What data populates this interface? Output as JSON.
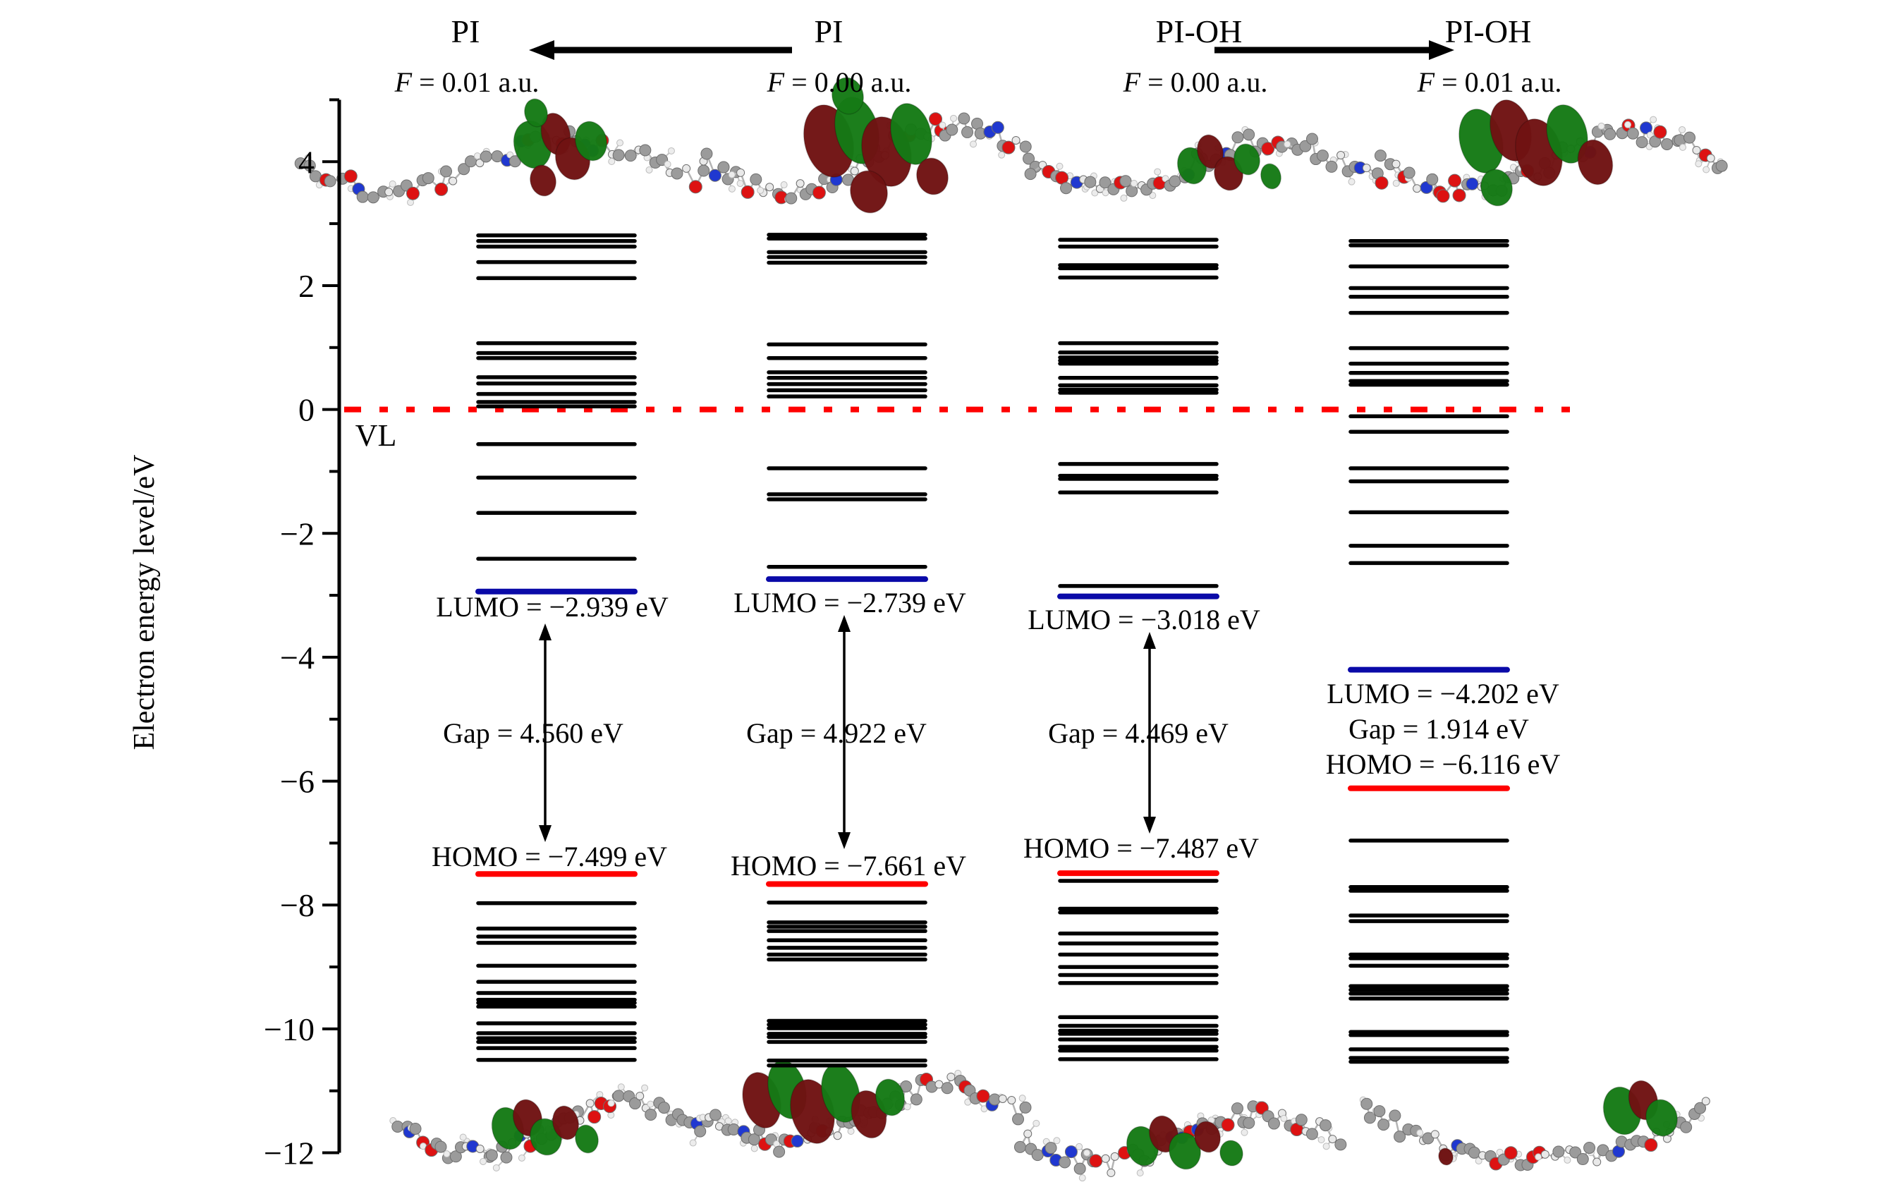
{
  "page": {
    "background": "#ffffff"
  },
  "header": {
    "groups": [
      {
        "molecule": "PI",
        "field_label": "F = 0.01 a.u."
      },
      {
        "molecule": "PI",
        "field_label": "F = 0.00 a.u."
      },
      {
        "molecule": "PI-OH",
        "field_label": "F = 0.00 a.u."
      },
      {
        "molecule": "PI-OH",
        "field_label": "F = 0.01 a.u."
      }
    ],
    "arrows": [
      {
        "between": [
          "PI",
          "PI"
        ],
        "direction": "left"
      },
      {
        "between": [
          "PI-OH",
          "PI-OH"
        ],
        "direction": "right"
      }
    ]
  },
  "vl": {
    "label": "VL"
  },
  "chart_data": {
    "type": "energy-level-diagram",
    "ylabel": "Electron energy level/eV",
    "ylim": [
      -12,
      5
    ],
    "yticks": [
      4,
      2,
      0,
      -2,
      -4,
      -6,
      -8,
      -10,
      -12
    ],
    "vacuum_level_eV": 0,
    "vacuum_level_label": "VL",
    "columns": [
      {
        "molecule": "PI",
        "field_label": "F = 0.01 a.u.",
        "homo_eV": -7.499,
        "lumo_eV": -2.939,
        "gap_eV": 4.56,
        "homo_label": "HOMO = −7.499 eV",
        "lumo_label": "LUMO = −2.939 eV",
        "gap_label": "Gap = 4.560 eV",
        "levels_eV": [
          2.81,
          2.72,
          2.63,
          2.38,
          2.12,
          1.07,
          0.91,
          0.83,
          0.52,
          0.42,
          0.25,
          0.12,
          0.05,
          -0.56,
          -1.1,
          -1.67,
          -2.41,
          -7.97,
          -8.38,
          -8.51,
          -8.61,
          -8.98,
          -9.24,
          -9.42,
          -9.53,
          -9.58,
          -9.64,
          -9.91,
          -10.07,
          -10.15,
          -10.21,
          -10.31,
          -10.5
        ]
      },
      {
        "molecule": "PI",
        "field_label": "F = 0.00 a.u.",
        "homo_eV": -7.661,
        "lumo_eV": -2.739,
        "gap_eV": 4.922,
        "homo_label": "HOMO = −7.661 eV",
        "lumo_label": "LUMO = −2.739 eV",
        "gap_label": "Gap = 4.922 eV",
        "levels_eV": [
          2.82,
          2.76,
          2.54,
          2.46,
          2.37,
          1.05,
          0.83,
          0.6,
          0.51,
          0.41,
          0.31,
          0.21,
          -0.95,
          -1.37,
          -1.45,
          -2.54,
          -7.96,
          -8.28,
          -8.35,
          -8.42,
          -8.57,
          -8.69,
          -8.8,
          -8.88,
          -9.87,
          -9.93,
          -9.99,
          -10.08,
          -10.13,
          -10.21,
          -10.51,
          -10.59
        ]
      },
      {
        "molecule": "PI-OH",
        "field_label": "F = 0.00 a.u.",
        "homo_eV": -7.487,
        "lumo_eV": -3.018,
        "gap_eV": 4.469,
        "homo_label": "HOMO = −7.487 eV",
        "lumo_label": "LUMO = −3.018 eV",
        "gap_label": "Gap = 4.469 eV",
        "levels_eV": [
          2.74,
          2.63,
          2.33,
          2.28,
          2.13,
          1.07,
          0.92,
          0.84,
          0.79,
          0.74,
          0.51,
          0.39,
          0.32,
          0.27,
          -0.88,
          -1.07,
          -1.12,
          -1.34,
          -2.85,
          -7.61,
          -8.06,
          -8.12,
          -8.46,
          -8.62,
          -8.8,
          -9.0,
          -9.13,
          -9.26,
          -9.81,
          -9.95,
          -10.03,
          -10.08,
          -10.17,
          -10.29,
          -10.35,
          -10.49
        ]
      },
      {
        "molecule": "PI-OH",
        "field_label": "F = 0.01 a.u.",
        "homo_eV": -6.116,
        "lumo_eV": -4.202,
        "gap_eV": 1.914,
        "homo_label": "HOMO = −6.116 eV",
        "lumo_label": "LUMO = −4.202 eV",
        "gap_label": "Gap = 1.914 eV",
        "levels_eV": [
          2.72,
          2.65,
          2.31,
          1.96,
          1.82,
          1.56,
          0.99,
          0.74,
          0.59,
          0.46,
          0.4,
          -0.11,
          -0.36,
          -0.95,
          -1.16,
          -1.66,
          -2.2,
          -2.48,
          -6.96,
          -7.71,
          -7.77,
          -8.17,
          -8.26,
          -8.8,
          -8.86,
          -8.98,
          -9.31,
          -9.37,
          -9.43,
          -9.51,
          -10.05,
          -10.1,
          -10.33,
          -10.47,
          -10.53
        ]
      }
    ]
  },
  "axis": {
    "label": "Electron energy level/eV",
    "tick_labels": [
      "4",
      "2",
      "0",
      "−2",
      "−4",
      "−6",
      "−8",
      "−10",
      "−12"
    ]
  },
  "colors": {
    "level": "#000000",
    "homo": "#ff0000",
    "lumo": "#0a0aa8",
    "vacuum": "#ff0000",
    "lobe_green": "#157a15",
    "lobe_maroon": "#701212"
  }
}
